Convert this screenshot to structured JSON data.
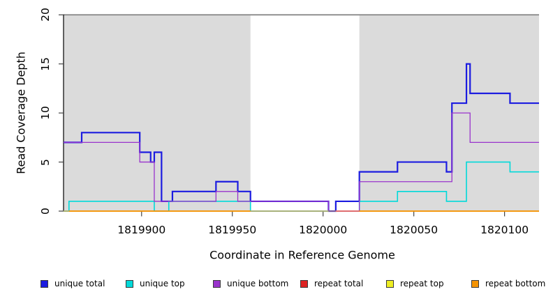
{
  "chart_data": {
    "type": "line",
    "subtype": "step-coverage",
    "title": "",
    "xlabel": "Coordinate in Reference Genome",
    "ylabel": "Read Coverage Depth",
    "xlim": [
      1819857,
      1820119
    ],
    "ylim": [
      0,
      20
    ],
    "x_ticks": [
      1819900,
      1819950,
      1820000,
      1820050,
      1820100
    ],
    "y_ticks": [
      0,
      5,
      10,
      15,
      20
    ],
    "grid": false,
    "legend_position": "bottom",
    "shade_color": "#dbdbdb",
    "background_shaded_regions": [
      [
        1819857,
        1819960
      ],
      [
        1820020,
        1820119
      ]
    ],
    "unshaded_gap": [
      1819960,
      1820020
    ],
    "cap_line": {
      "value": 20,
      "color": "#7a7a7a"
    },
    "series": [
      {
        "name": "unique total",
        "color": "#1c1ce0",
        "line_width": 2.2,
        "steps": [
          [
            1819857,
            7
          ],
          [
            1819867,
            8
          ],
          [
            1819899,
            6
          ],
          [
            1819905,
            5
          ],
          [
            1819907,
            6
          ],
          [
            1819911,
            1
          ],
          [
            1819917,
            2
          ],
          [
            1819941,
            3
          ],
          [
            1819953,
            2
          ],
          [
            1819960,
            1
          ],
          [
            1820003,
            0
          ],
          [
            1820007,
            1
          ],
          [
            1820020,
            4
          ],
          [
            1820041,
            5
          ],
          [
            1820068,
            4
          ],
          [
            1820071,
            11
          ],
          [
            1820079,
            15
          ],
          [
            1820081,
            12
          ],
          [
            1820103,
            11
          ]
        ]
      },
      {
        "name": "unique top",
        "color": "#00d9d9",
        "line_width": 1.6,
        "steps": [
          [
            1819857,
            0
          ],
          [
            1819860,
            1
          ],
          [
            1819907,
            0
          ],
          [
            1819915,
            1
          ],
          [
            1819960,
            0
          ],
          [
            1820020,
            1
          ],
          [
            1820041,
            2
          ],
          [
            1820068,
            1
          ],
          [
            1820079,
            5
          ],
          [
            1820103,
            4
          ]
        ]
      },
      {
        "name": "unique bottom",
        "color": "#9933cc",
        "line_width": 1.3,
        "steps": [
          [
            1819857,
            7
          ],
          [
            1819899,
            5
          ],
          [
            1819907,
            1
          ],
          [
            1819941,
            2
          ],
          [
            1819953,
            1
          ],
          [
            1820003,
            0
          ],
          [
            1820020,
            3
          ],
          [
            1820071,
            10
          ],
          [
            1820081,
            7
          ]
        ]
      },
      {
        "name": "repeat total",
        "color": "#dd2222",
        "line_width": 1.2,
        "steps": [
          [
            1819857,
            0
          ]
        ]
      },
      {
        "name": "repeat top",
        "color": "#eeee22",
        "line_width": 1.2,
        "steps": [
          [
            1819857,
            0
          ]
        ]
      },
      {
        "name": "repeat bottom",
        "color": "#f59300",
        "line_width": 1.7,
        "steps": [
          [
            1819857,
            0
          ]
        ]
      }
    ],
    "zero_line_blends": [
      {
        "x1": 1819857,
        "x2": 1819860,
        "color": "#93bb95"
      },
      {
        "x1": 1819960,
        "x2": 1820003,
        "color": "#95b898"
      },
      {
        "x1": 1820003,
        "x2": 1820007,
        "color": "#5043cf"
      },
      {
        "x1": 1820007,
        "x2": 1820020,
        "color": "#de5f8a"
      }
    ]
  }
}
